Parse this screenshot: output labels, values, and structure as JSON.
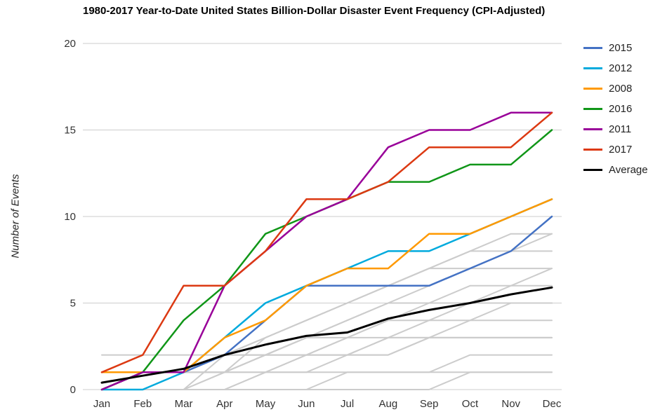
{
  "title": "1980-2017 Year-to-Date United States Billion-Dollar Disaster Event Frequency (CPI-Adjusted)",
  "chart_data": {
    "type": "line",
    "title": "1980-2017 Year-to-Date United States Billion-Dollar Disaster Event Frequency (CPI-Adjusted)",
    "xlabel": "",
    "ylabel": "Number of Events",
    "categories": [
      "Jan",
      "Feb",
      "Mar",
      "Apr",
      "May",
      "Jun",
      "Jul",
      "Aug",
      "Sep",
      "Oct",
      "Nov",
      "Dec"
    ],
    "ylim": [
      0,
      20
    ],
    "yticks": [
      0,
      5,
      10,
      15,
      20
    ],
    "grid": true,
    "legend_position": "right",
    "background_color": "#cccccc",
    "series": [
      {
        "name": "2015",
        "color": "#4472c4",
        "values": [
          0,
          1,
          1,
          2,
          4,
          6,
          6,
          6,
          6,
          7,
          8,
          10
        ]
      },
      {
        "name": "2012",
        "color": "#00aadd",
        "values": [
          0,
          0,
          1,
          3,
          5,
          6,
          7,
          8,
          8,
          9,
          10,
          11
        ]
      },
      {
        "name": "2008",
        "color": "#ff9900",
        "values": [
          1,
          1,
          1,
          3,
          4,
          6,
          7,
          7,
          9,
          9,
          10,
          11
        ]
      },
      {
        "name": "2016",
        "color": "#109618",
        "values": [
          0,
          1,
          4,
          6,
          9,
          10,
          11,
          12,
          12,
          13,
          13,
          15
        ]
      },
      {
        "name": "2011",
        "color": "#990099",
        "values": [
          0,
          1,
          1,
          6,
          8,
          10,
          11,
          14,
          15,
          15,
          16,
          16
        ]
      },
      {
        "name": "2017",
        "color": "#dc3912",
        "values": [
          1,
          2,
          6,
          6,
          8,
          11,
          11,
          12,
          14,
          14,
          14,
          16
        ]
      },
      {
        "name": "Average",
        "color": "#000000",
        "values": [
          0.4,
          0.8,
          1.2,
          2.0,
          2.6,
          3.1,
          3.3,
          4.1,
          4.6,
          5.0,
          5.5,
          5.9
        ]
      }
    ],
    "background_series": [
      {
        "name": "other-year",
        "color": "#cccccc",
        "values": [
          0,
          0,
          0,
          0,
          0,
          0,
          0,
          0,
          0,
          1,
          1,
          1
        ]
      },
      {
        "name": "other-year",
        "color": "#cccccc",
        "values": [
          0,
          0,
          0,
          0,
          1,
          1,
          1,
          1,
          1,
          1,
          1,
          1
        ]
      },
      {
        "name": "other-year",
        "color": "#cccccc",
        "values": [
          0,
          0,
          0,
          0,
          0,
          0,
          1,
          1,
          1,
          2,
          2,
          2
        ]
      },
      {
        "name": "other-year",
        "color": "#cccccc",
        "values": [
          2,
          2,
          2,
          2,
          2,
          2,
          2,
          2,
          3,
          3,
          3,
          3
        ]
      },
      {
        "name": "other-year",
        "color": "#cccccc",
        "values": [
          0,
          0,
          1,
          1,
          1,
          1,
          2,
          2,
          3,
          3,
          3,
          3
        ]
      },
      {
        "name": "other-year",
        "color": "#cccccc",
        "values": [
          1,
          1,
          1,
          1,
          2,
          2,
          2,
          3,
          3,
          3,
          3,
          3
        ]
      },
      {
        "name": "other-year",
        "color": "#cccccc",
        "values": [
          0,
          0,
          0,
          1,
          1,
          2,
          2,
          3,
          3,
          4,
          4,
          4
        ]
      },
      {
        "name": "other-year",
        "color": "#cccccc",
        "values": [
          0,
          0,
          0,
          0,
          1,
          2,
          3,
          3,
          4,
          4,
          5,
          5
        ]
      },
      {
        "name": "other-year",
        "color": "#cccccc",
        "values": [
          0,
          1,
          1,
          2,
          2,
          3,
          3,
          4,
          4,
          5,
          5,
          5
        ]
      },
      {
        "name": "other-year",
        "color": "#cccccc",
        "values": [
          0,
          0,
          1,
          1,
          2,
          2,
          3,
          4,
          5,
          5,
          6,
          6
        ]
      },
      {
        "name": "other-year",
        "color": "#cccccc",
        "values": [
          0,
          0,
          0,
          1,
          2,
          3,
          4,
          5,
          5,
          6,
          6,
          7
        ]
      },
      {
        "name": "other-year",
        "color": "#cccccc",
        "values": [
          0,
          0,
          1,
          2,
          2,
          3,
          4,
          5,
          6,
          7,
          7,
          7
        ]
      },
      {
        "name": "other-year",
        "color": "#cccccc",
        "values": [
          0,
          1,
          1,
          2,
          3,
          4,
          5,
          6,
          7,
          7,
          8,
          8
        ]
      },
      {
        "name": "other-year",
        "color": "#cccccc",
        "values": [
          0,
          0,
          1,
          1,
          3,
          4,
          5,
          6,
          7,
          8,
          9,
          9
        ]
      },
      {
        "name": "other-year",
        "color": "#cccccc",
        "values": [
          0,
          0,
          0,
          2,
          3,
          4,
          5,
          6,
          7,
          8,
          8,
          9
        ]
      }
    ]
  }
}
